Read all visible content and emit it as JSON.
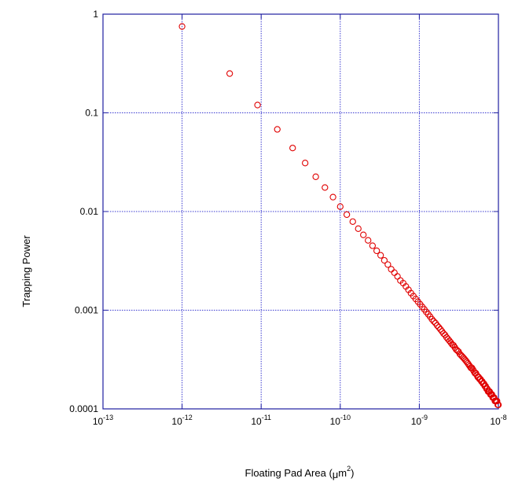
{
  "chart_data": {
    "type": "scatter",
    "title": "",
    "xlabel": "Floating Pad Area (μm²)",
    "xlabel_parts": {
      "before": "Floating Pad Area (",
      "mu": "μ",
      "m": "m",
      "sup": "2",
      "after": ")"
    },
    "ylabel": "Trapping Power",
    "xscale": "log",
    "yscale": "log",
    "xlim": [
      1e-13,
      1e-08
    ],
    "ylim": [
      0.0001,
      1
    ],
    "grid": true,
    "legend": "none",
    "colors": {
      "frame": "#1f1fa0",
      "grid": "#3a3ad0",
      "marker": "#e00000"
    },
    "x_ticks": [
      {
        "value": 1e-13,
        "base": "10",
        "exp": "-13"
      },
      {
        "value": 1e-12,
        "base": "10",
        "exp": "-12"
      },
      {
        "value": 1e-11,
        "base": "10",
        "exp": "-11"
      },
      {
        "value": 1e-10,
        "base": "10",
        "exp": "-10"
      },
      {
        "value": 1e-09,
        "base": "10",
        "exp": "-9"
      },
      {
        "value": 1e-08,
        "base": "10",
        "exp": "-8"
      }
    ],
    "y_ticks": [
      {
        "value": 1,
        "label": "1"
      },
      {
        "value": 0.1,
        "label": "0.1"
      },
      {
        "value": 0.01,
        "label": "0.01"
      },
      {
        "value": 0.001,
        "label": "0.001"
      },
      {
        "value": 0.0001,
        "label": "0.0001"
      }
    ],
    "series": [
      {
        "marker": "open-circle",
        "x": [
          1e-12,
          4e-12,
          9e-12,
          1.6e-11,
          2.5e-11,
          3.6e-11,
          4.9e-11,
          6.4e-11,
          8.1e-11,
          1e-10,
          1.21e-10,
          1.44e-10,
          1.69e-10,
          1.96e-10,
          2.25e-10,
          2.56e-10,
          2.89e-10,
          3.24e-10,
          3.61e-10,
          4e-10,
          4.41e-10,
          4.84e-10,
          5.29e-10,
          5.76e-10,
          6.25e-10,
          6.76e-10,
          7.29e-10,
          7.84e-10,
          8.41e-10,
          9e-10,
          9.61e-10,
          1.024e-09,
          1.089e-09,
          1.156e-09,
          1.225e-09,
          1.296e-09,
          1.369e-09,
          1.444e-09,
          1.521e-09,
          1.6e-09,
          1.681e-09,
          1.764e-09,
          1.849e-09,
          1.936e-09,
          2.025e-09,
          2.116e-09,
          2.209e-09,
          2.304e-09,
          2.401e-09,
          2.5e-09,
          2.601e-09,
          2.704e-09,
          2.809e-09,
          2.916e-09,
          3.025e-09,
          3.136e-09,
          3.249e-09,
          3.364e-09,
          3.481e-09,
          3.6e-09,
          3.721e-09,
          3.844e-09,
          3.969e-09,
          4.096e-09,
          4.225e-09,
          4.356e-09,
          4.489e-09,
          4.624e-09,
          4.761e-09,
          4.9e-09,
          5.041e-09,
          5.184e-09,
          5.329e-09,
          5.476e-09,
          5.625e-09,
          5.776e-09,
          5.929e-09,
          6.084e-09,
          6.241e-09,
          6.4e-09,
          6.561e-09,
          6.724e-09,
          6.889e-09,
          7.056e-09,
          7.225e-09,
          7.396e-09,
          7.569e-09,
          7.744e-09,
          7.921e-09,
          8.1e-09,
          8.281e-09,
          8.464e-09,
          8.649e-09,
          8.836e-09,
          9.025e-09,
          9.216e-09,
          9.409e-09,
          9.604e-09,
          9.801e-09,
          1e-08
        ],
        "y": [
          0.75,
          0.25,
          0.12,
          0.068,
          0.044,
          0.031,
          0.0225,
          0.0175,
          0.014,
          0.0112,
          0.0093,
          0.0079,
          0.0067,
          0.0058,
          0.0051,
          0.0045,
          0.004,
          0.0036,
          0.0032,
          0.0029,
          0.0026,
          0.0024,
          0.0022,
          0.002,
          0.00188,
          0.00174,
          0.00161,
          0.00149,
          0.00139,
          0.0013,
          0.00122,
          0.00115,
          0.00108,
          0.00102,
          0.00096,
          0.00091,
          0.00086,
          0.00081,
          0.00077,
          0.00074,
          0.0007,
          0.00067,
          0.00064,
          0.00061,
          0.00058,
          0.00056,
          0.00053,
          0.00051,
          0.00049,
          0.00047,
          0.00045,
          0.00044,
          0.00042,
          0.0004,
          0.00039,
          0.00038,
          0.00036,
          0.00035,
          0.00034,
          0.00033,
          0.00032,
          0.00031,
          0.0003,
          0.00029,
          0.00028,
          0.00027,
          0.00026,
          0.00026,
          0.00025,
          0.00024,
          0.00023,
          0.00023,
          0.00022,
          0.00021,
          0.00021,
          0.0002,
          0.0002,
          0.00019,
          0.00019,
          0.00018,
          0.00018,
          0.00017,
          0.00017,
          0.00016,
          0.00016,
          0.00015,
          0.00015,
          0.00015,
          0.00014,
          0.00014,
          0.00014,
          0.00013,
          0.00013,
          0.00013,
          0.00012,
          0.00012,
          0.00012,
          0.00012,
          0.00011,
          0.00011
        ]
      }
    ]
  }
}
